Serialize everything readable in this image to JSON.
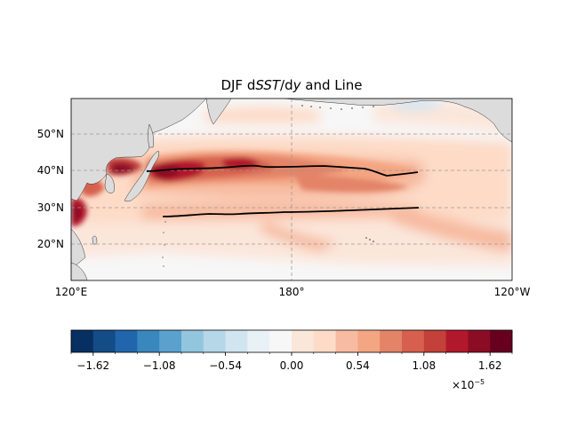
{
  "title": {
    "prefix": "DJF d",
    "sst": "SST",
    "slash": "/d",
    "y": "y",
    "suffix": " and Line"
  },
  "map": {
    "lat_labels": [
      "20°N",
      "30°N",
      "40°N",
      "50°N"
    ],
    "lon_labels": [
      "120°E",
      "180°",
      "120°W"
    ],
    "land_color": "#dcdcdc",
    "gridline_color": "#999999"
  },
  "colorbar": {
    "tick_labels": [
      "−1.62",
      "−1.08",
      "−0.54",
      "0.00",
      "0.54",
      "1.08",
      "1.62"
    ],
    "multiplier": "×10",
    "exponent": "−5",
    "colors": [
      "#053061",
      "#134c87",
      "#2166ac",
      "#3a87bd",
      "#5aa1ce",
      "#92c5de",
      "#b5d7e8",
      "#d1e5f0",
      "#e8f1f6",
      "#f7f7f7",
      "#fbe6da",
      "#fddbc7",
      "#f7bba1",
      "#f4a582",
      "#e38367",
      "#d6604d",
      "#c3403b",
      "#b2182b",
      "#8c0c25",
      "#67001f"
    ]
  },
  "lines": {
    "color": "#000000"
  }
}
